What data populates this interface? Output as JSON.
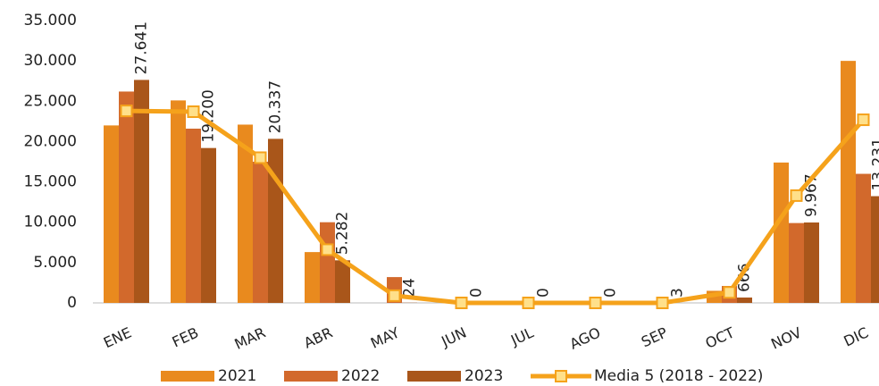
{
  "chart_data": {
    "type": "bar",
    "categories": [
      "ENE",
      "FEB",
      "MAR",
      "ABR",
      "MAY",
      "JUN",
      "JUL",
      "AGO",
      "SEP",
      "OCT",
      "NOV",
      "DIC"
    ],
    "series": [
      {
        "name": "2021",
        "color": "#E98A1E",
        "values": [
          22000,
          25100,
          22100,
          6300,
          0,
          0,
          0,
          0,
          0,
          1500,
          17400,
          30000
        ]
      },
      {
        "name": "2022",
        "color": "#D2692C",
        "values": [
          26200,
          21600,
          17500,
          10000,
          3200,
          0,
          0,
          0,
          0,
          2100,
          9900,
          16000
        ]
      },
      {
        "name": "2023",
        "color": "#A9561A",
        "values": [
          27641,
          19200,
          20337,
          5282,
          24,
          0,
          0,
          0,
          3,
          666,
          9967,
          13231
        ],
        "value_labels": [
          "27.641",
          "19.200",
          "20.337",
          "5.282",
          "24",
          "0",
          "0",
          "0",
          "3",
          "666",
          "9.967",
          "13.231"
        ]
      },
      {
        "name": "Media 5 (2018 - 2022)",
        "type": "line",
        "color": "#F5A21B",
        "marker_color": "#FFE08A",
        "values": [
          23800,
          23700,
          18000,
          6600,
          900,
          0,
          0,
          0,
          0,
          1300,
          13300,
          22700
        ]
      }
    ],
    "ylim": [
      0,
      35000
    ],
    "yticks": [
      0,
      {
        "value": 5000,
        "label": "5.000"
      },
      {
        "value": 10000,
        "label": "10.000"
      },
      {
        "value": 15000,
        "label": "15.000"
      },
      {
        "value": 20000,
        "label": "20.000"
      },
      {
        "value": 25000,
        "label": "25.000"
      },
      {
        "value": 30000,
        "label": "30.000"
      },
      {
        "value": 35000,
        "label": "35.000"
      }
    ],
    "legend": "bottom"
  }
}
